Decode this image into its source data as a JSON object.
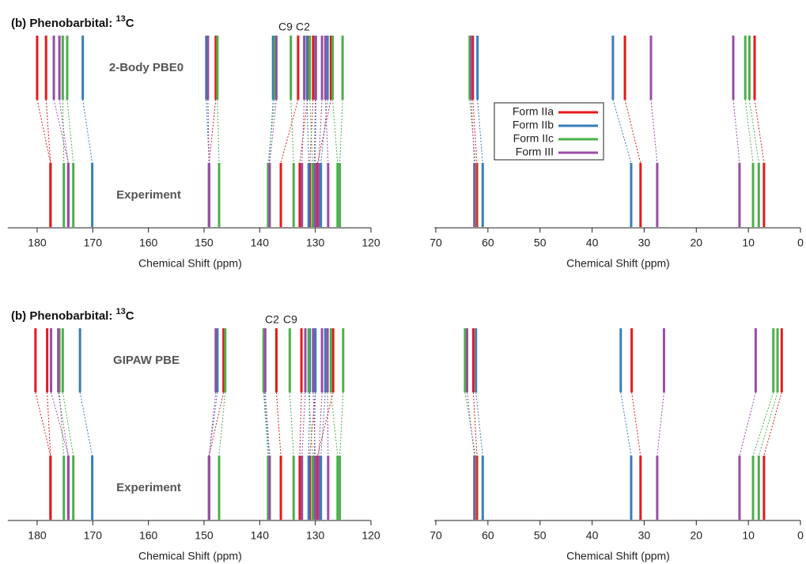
{
  "chart_data": [
    {
      "type": "stick",
      "title": "(b) Phenobarbital: ",
      "title_superscript": "13",
      "title_suffix": "C",
      "xlabel": "Chemical Shift (ppm)",
      "xlim": [
        185,
        120
      ],
      "xticks": [
        180,
        170,
        160,
        150,
        140,
        130,
        120
      ],
      "row_labels": [
        "2-Body PBE0",
        "Experiment"
      ],
      "annotations": [
        {
          "text": "C9",
          "color": "#4daf4a"
        },
        {
          "text": "C2",
          "color": "#e41a1c"
        }
      ],
      "series": [
        {
          "color": "#e41a1c",
          "values": [
            180.0,
            178.4,
            147.9,
            133.1,
            131.4,
            130.4,
            127.2
          ],
          "experiment": [
            177.6,
            177.6,
            149.1,
            136.2,
            132.8,
            131.0,
            129.6
          ]
        },
        {
          "color": "#377eb8",
          "values": [
            171.8,
            149.6,
            137.6,
            131.5,
            130.0,
            127.8
          ],
          "experiment": [
            170.1,
            149.1,
            138.3,
            131.2,
            130.2,
            129.0
          ]
        },
        {
          "color": "#4daf4a",
          "values": [
            175.4,
            174.6,
            147.6,
            137.3,
            134.4,
            131.0,
            126.9,
            125.1
          ],
          "experiment": [
            175.2,
            173.5,
            147.3,
            138.5,
            133.9,
            130.5,
            126.0,
            125.6
          ]
        },
        {
          "color": "#984ea3",
          "values": [
            177.0,
            176.0,
            149.3,
            137.0,
            132.0,
            129.9,
            128.8,
            128.2
          ],
          "experiment": [
            174.4,
            174.4,
            149.1,
            138.2,
            132.4,
            130.0,
            129.4,
            127.7
          ]
        }
      ]
    },
    {
      "type": "stick",
      "xlabel": "Chemical Shift (ppm)",
      "xlim": [
        70,
        0
      ],
      "xticks": [
        70,
        60,
        50,
        40,
        30,
        20,
        10,
        0
      ],
      "legend": "center left",
      "series": [
        {
          "name": "Form IIa",
          "color": "#e41a1c",
          "values": [
            62.9,
            33.7,
            8.8
          ],
          "experiment": [
            62.1,
            30.7,
            7.0
          ]
        },
        {
          "name": "Form IIb",
          "color": "#377eb8",
          "values": [
            62.0,
            36.0
          ],
          "experiment": [
            61.0,
            32.5
          ]
        },
        {
          "name": "Form IIc",
          "color": "#4daf4a",
          "values": [
            63.5,
            10.6,
            9.8
          ],
          "experiment": [
            62.4,
            9.1,
            8.0
          ]
        },
        {
          "name": "Form III",
          "color": "#984ea3",
          "values": [
            63.2,
            28.7,
            12.9
          ],
          "experiment": [
            62.6,
            27.5,
            11.7
          ]
        }
      ]
    },
    {
      "type": "stick",
      "title": "(b) Phenobarbital: ",
      "title_superscript": "13",
      "title_suffix": "C",
      "xlabel": "Chemical Shift (ppm)",
      "xlim": [
        185,
        120
      ],
      "xticks": [
        180,
        170,
        160,
        150,
        140,
        130,
        120
      ],
      "row_labels": [
        "GIPAW PBE",
        "Experiment"
      ],
      "annotations": [
        {
          "text": "C2",
          "color": "#e41a1c"
        },
        {
          "text": "C9",
          "color": "#4daf4a"
        }
      ],
      "series": [
        {
          "color": "#e41a1c",
          "values": [
            180.3,
            178.2,
            146.5,
            137.0,
            132.5,
            130.0,
            126.8
          ],
          "experiment": [
            177.6,
            177.6,
            149.1,
            136.2,
            132.8,
            131.0,
            129.6
          ]
        },
        {
          "color": "#377eb8",
          "values": [
            172.3,
            147.6,
            139.2,
            131.0,
            130.0,
            128.2
          ],
          "experiment": [
            170.1,
            149.1,
            138.3,
            131.2,
            130.2,
            129.0
          ]
        },
        {
          "color": "#4daf4a",
          "values": [
            176.0,
            175.4,
            146.2,
            139.3,
            134.6,
            131.2,
            127.2,
            125.0
          ],
          "experiment": [
            175.2,
            173.5,
            147.3,
            138.5,
            133.9,
            130.5,
            126.0,
            125.6
          ]
        },
        {
          "color": "#984ea3",
          "values": [
            177.5,
            176.2,
            147.9,
            139.0,
            131.8,
            130.4,
            128.8,
            127.8
          ],
          "experiment": [
            174.4,
            174.4,
            149.1,
            138.2,
            132.4,
            130.0,
            129.4,
            127.7
          ]
        }
      ]
    },
    {
      "type": "stick",
      "xlabel": "Chemical Shift (ppm)",
      "xlim": [
        70,
        0
      ],
      "xticks": [
        70,
        60,
        50,
        40,
        30,
        20,
        10,
        0
      ],
      "series": [
        {
          "color": "#e41a1c",
          "values": [
            62.8,
            32.4,
            3.6
          ],
          "experiment": [
            62.1,
            30.7,
            7.0
          ]
        },
        {
          "color": "#377eb8",
          "values": [
            62.3,
            34.5
          ],
          "experiment": [
            61.0,
            32.5
          ]
        },
        {
          "color": "#4daf4a",
          "values": [
            64.4,
            5.2,
            4.4
          ],
          "experiment": [
            62.4,
            9.1,
            8.0
          ]
        },
        {
          "color": "#984ea3",
          "values": [
            64.0,
            26.2,
            8.6
          ],
          "experiment": [
            62.6,
            27.5,
            11.7
          ]
        }
      ]
    }
  ]
}
